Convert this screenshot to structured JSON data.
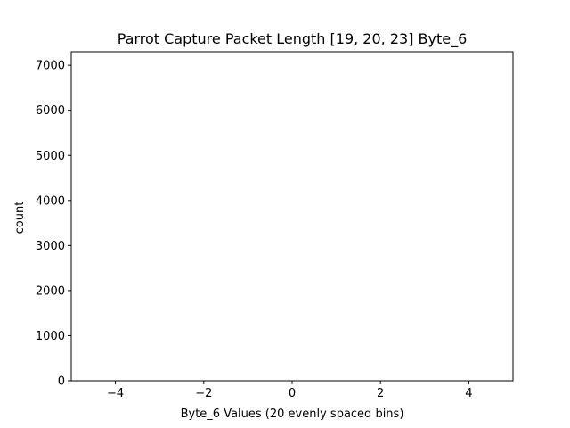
{
  "chart_data": {
    "type": "bar",
    "title": "Parrot Capture Packet Length [19, 20, 23] Byte_6",
    "xlabel": "Byte_6 Values (20 evenly spaced bins)",
    "ylabel": "count",
    "xlim": [
      -5,
      5
    ],
    "ylim": [
      0,
      7300
    ],
    "xticks": [
      -4,
      -2,
      0,
      2,
      4
    ],
    "xtick_labels": [
      "−4",
      "−2",
      "0",
      "2",
      "4"
    ],
    "yticks": [
      0,
      1000,
      2000,
      3000,
      4000,
      5000,
      6000,
      7000
    ],
    "ytick_labels": [
      "0",
      "1000",
      "2000",
      "3000",
      "4000",
      "5000",
      "6000",
      "7000"
    ],
    "bins": 20,
    "series": [],
    "grid": false,
    "legend": "none",
    "colors": {
      "axes": "#000000",
      "background": "#ffffff"
    }
  }
}
